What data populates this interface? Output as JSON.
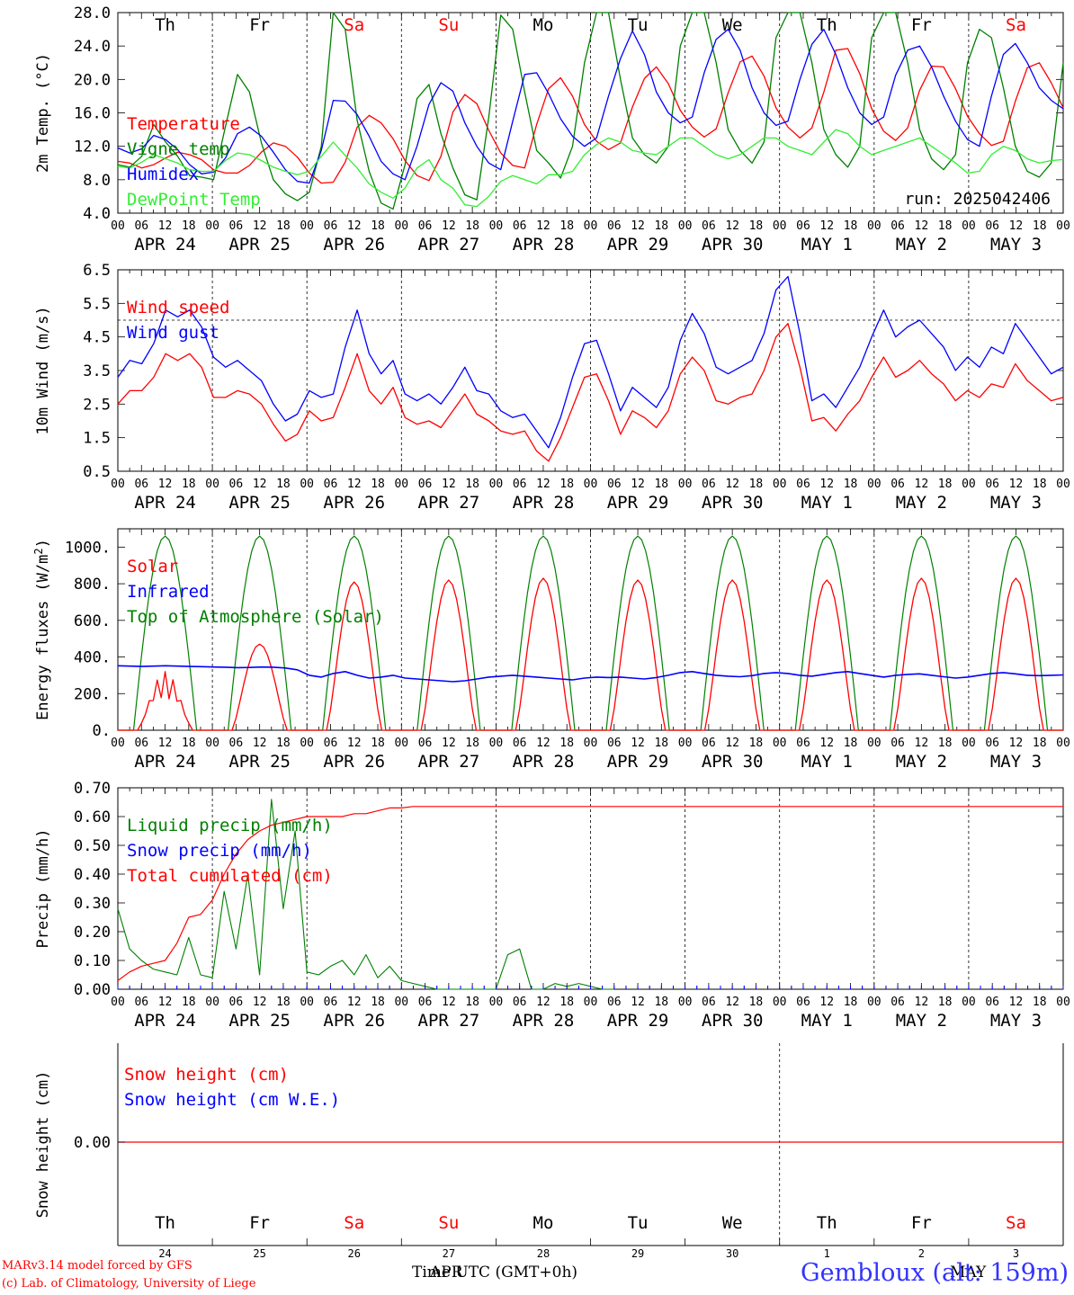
{
  "hour_ticks": [
    "00",
    "06",
    "12",
    "18"
  ],
  "end_tick": "00",
  "day_labels": [
    "APR 24",
    "APR 25",
    "APR 26",
    "APR 27",
    "APR 28",
    "APR 29",
    "APR 30",
    "MAY  1",
    "MAY  2",
    "MAY  3"
  ],
  "weekdays": [
    {
      "label": "Th",
      "color": "#000000"
    },
    {
      "label": "Fr",
      "color": "#000000"
    },
    {
      "label": "Sa",
      "color": "#ff0000"
    },
    {
      "label": "Su",
      "color": "#ff0000"
    },
    {
      "label": "Mo",
      "color": "#000000"
    },
    {
      "label": "Tu",
      "color": "#000000"
    },
    {
      "label": "We",
      "color": "#000000"
    },
    {
      "label": "Th",
      "color": "#000000"
    },
    {
      "label": "Fr",
      "color": "#000000"
    },
    {
      "label": "Sa",
      "color": "#ff0000"
    }
  ],
  "day_numbers": [
    "24",
    "25",
    "26",
    "27",
    "28",
    "29",
    "30",
    "1",
    "2",
    "3"
  ],
  "colors": {
    "red": "#ff0000",
    "blue": "#0000ff",
    "green": "#008000",
    "lightgreen": "#33ee33"
  },
  "footer": {
    "line1": "MARv3.14 model forced by GFS",
    "line2": "(c) Lab. of Climatology, University of Liege",
    "x_title": "Time UTC (GMT+0h)",
    "month_overlay_apr": "APR",
    "month_overlay_may": "MAY",
    "station": "Gembloux (alt: 159m)"
  },
  "chart_data": [
    {
      "type": "line",
      "ylabel": "2m Temp. (°C)",
      "ylim": [
        4,
        28
      ],
      "yticks": [
        "4.0",
        "8.0",
        "12.0",
        "16.0",
        "20.0",
        "24.0",
        "28.0"
      ],
      "annotation": "run: 2025042406",
      "x": "3-hourly steps from APR 24 00 UTC to MAY 4 00 UTC",
      "series": [
        {
          "name": "Temperature",
          "color": "#ff0000",
          "values": [
            10.2,
            10.0,
            9.4,
            9.8,
            10.6,
            11.3,
            11.0,
            10.4,
            9.2,
            8.8,
            8.8,
            9.7,
            11.3,
            12.4,
            12.0,
            10.7,
            8.8,
            7.6,
            7.7,
            10.1,
            14.3,
            15.7,
            14.8,
            12.9,
            10.3,
            8.5,
            7.9,
            10.8,
            16.1,
            18.2,
            17.1,
            13.9,
            11.2,
            9.7,
            9.4,
            14.6,
            18.9,
            20.2,
            18.0,
            14.6,
            12.6,
            11.6,
            12.4,
            16.7,
            20.1,
            21.5,
            19.5,
            16.3,
            14.3,
            13.1,
            14.1,
            18.4,
            22.1,
            22.8,
            20.4,
            16.6,
            14.3,
            13.0,
            14.2,
            18.5,
            23.5,
            23.7,
            20.7,
            16.5,
            13.8,
            12.7,
            14.2,
            18.7,
            21.6,
            21.5,
            18.9,
            15.6,
            13.5,
            12.1,
            12.6,
            17.4,
            21.4,
            22.0,
            19.6,
            16.6
          ]
        },
        {
          "name": "Vigne temp",
          "color": "#008000",
          "values": [
            9.8,
            9.5,
            10.8,
            14.6,
            12.5,
            10.8,
            8.5,
            8.3,
            8.0,
            14.4,
            20.6,
            18.5,
            12.4,
            8.0,
            6.3,
            5.5,
            6.5,
            12.0,
            28.0,
            26.0,
            15.1,
            9.0,
            5.2,
            4.5,
            9.8,
            17.7,
            19.4,
            13.5,
            9.4,
            6.2,
            5.6,
            15.5,
            27.7,
            26.0,
            18.5,
            11.5,
            10.0,
            8.2,
            12.0,
            22.0,
            28.0,
            28.0,
            20.0,
            13.0,
            11.0,
            10.0,
            12.0,
            24.0,
            28.0,
            28.0,
            22.0,
            14.0,
            11.5,
            10.0,
            12.5,
            25.0,
            28.0,
            28.0,
            22.0,
            14.0,
            11.0,
            9.5,
            12.0,
            25.0,
            28.0,
            28.0,
            22.0,
            14.0,
            10.5,
            9.2,
            11.0,
            22.0,
            26.0,
            25.0,
            19.0,
            12.0,
            9.0,
            8.3,
            10.0,
            22.0
          ]
        },
        {
          "name": "Humidex",
          "color": "#0000ff",
          "values": [
            11.8,
            11.2,
            11.7,
            13.3,
            12.8,
            11.6,
            9.8,
            8.7,
            8.9,
            10.6,
            13.5,
            14.3,
            13.2,
            11.3,
            9.2,
            7.8,
            7.6,
            11.5,
            17.5,
            17.4,
            15.8,
            13.2,
            10.2,
            8.7,
            8.0,
            12.0,
            17.0,
            19.6,
            18.6,
            14.8,
            12.0,
            10.0,
            9.2,
            15.0,
            20.6,
            20.8,
            18.3,
            15.3,
            13.2,
            12.0,
            13.0,
            18.0,
            22.5,
            25.8,
            23.0,
            18.5,
            16.0,
            14.8,
            15.5,
            20.8,
            24.8,
            26.0,
            23.5,
            19.0,
            16.0,
            14.5,
            15.0,
            20.0,
            24.2,
            26.0,
            23.0,
            19.0,
            16.0,
            14.6,
            15.5,
            20.5,
            23.5,
            24.0,
            21.5,
            18.0,
            15.0,
            12.8,
            12.0,
            18.0,
            23.0,
            24.3,
            22.0,
            19.0,
            17.5,
            16.5
          ]
        },
        {
          "name": "DewPoint Temp",
          "color": "#33ee33",
          "values": [
            9.6,
            9.4,
            10.1,
            11.0,
            10.5,
            10.0,
            9.2,
            9.0,
            9.0,
            10.3,
            11.2,
            11.0,
            10.3,
            9.5,
            9.0,
            8.6,
            9.0,
            10.8,
            12.5,
            10.9,
            9.4,
            7.5,
            6.5,
            5.8,
            7.0,
            9.4,
            10.4,
            8.0,
            7.0,
            5.0,
            4.8,
            6.0,
            7.8,
            8.5,
            8.0,
            7.5,
            8.6,
            8.6,
            9.0,
            11.0,
            12.2,
            13.0,
            12.5,
            11.5,
            11.2,
            11.0,
            12.0,
            13.0,
            13.0,
            12.0,
            11.0,
            10.5,
            11.0,
            12.0,
            13.0,
            13.0,
            12.0,
            11.5,
            11.0,
            12.5,
            14.0,
            13.5,
            12.0,
            11.0,
            11.5,
            12.0,
            12.5,
            13.0,
            12.0,
            11.0,
            10.0,
            8.8,
            9.0,
            11.0,
            12.0,
            11.5,
            10.5,
            10.0,
            10.3,
            10.4
          ]
        }
      ]
    },
    {
      "type": "line",
      "ylabel": "10m Wind (m/s)",
      "ylim": [
        0.5,
        6.5
      ],
      "yticks": [
        "0.5",
        "1.5",
        "2.5",
        "3.5",
        "4.5",
        "5.5",
        "6.5"
      ],
      "reference_line": 5.0,
      "series": [
        {
          "name": "Wind speed",
          "color": "#ff0000",
          "values": [
            2.5,
            2.9,
            2.9,
            3.3,
            4.0,
            3.8,
            4.0,
            3.6,
            2.7,
            2.7,
            2.9,
            2.8,
            2.5,
            1.9,
            1.4,
            1.6,
            2.3,
            2.0,
            2.1,
            3.0,
            4.0,
            2.9,
            2.5,
            3.0,
            2.1,
            1.9,
            2.0,
            1.8,
            2.3,
            2.8,
            2.2,
            2.0,
            1.7,
            1.6,
            1.7,
            1.1,
            0.8,
            1.5,
            2.4,
            3.3,
            3.4,
            2.6,
            1.6,
            2.3,
            2.1,
            1.8,
            2.3,
            3.4,
            3.9,
            3.5,
            2.6,
            2.5,
            2.7,
            2.8,
            3.5,
            4.5,
            4.9,
            3.6,
            2.0,
            2.1,
            1.7,
            2.2,
            2.6,
            3.3,
            3.9,
            3.3,
            3.5,
            3.8,
            3.4,
            3.1,
            2.6,
            2.9,
            2.7,
            3.1,
            3.0,
            3.7,
            3.2,
            2.9,
            2.6,
            2.7
          ]
        },
        {
          "name": "Wind gust",
          "color": "#0000ff",
          "values": [
            3.3,
            3.8,
            3.7,
            4.3,
            5.3,
            5.1,
            5.3,
            4.8,
            3.9,
            3.6,
            3.8,
            3.5,
            3.2,
            2.5,
            2.0,
            2.2,
            2.9,
            2.7,
            2.8,
            4.2,
            5.3,
            4.0,
            3.4,
            3.8,
            2.8,
            2.6,
            2.8,
            2.5,
            3.0,
            3.6,
            2.9,
            2.8,
            2.3,
            2.1,
            2.2,
            1.7,
            1.2,
            2.1,
            3.3,
            4.3,
            4.4,
            3.4,
            2.3,
            3.0,
            2.7,
            2.4,
            3.0,
            4.4,
            5.2,
            4.6,
            3.6,
            3.4,
            3.6,
            3.8,
            4.6,
            5.9,
            6.3,
            4.6,
            2.6,
            2.8,
            2.4,
            3.0,
            3.6,
            4.5,
            5.3,
            4.5,
            4.8,
            5.0,
            4.6,
            4.2,
            3.5,
            3.9,
            3.6,
            4.2,
            4.0,
            4.9,
            4.4,
            3.9,
            3.4,
            3.6
          ]
        }
      ]
    },
    {
      "type": "line",
      "ylabel": "Energy fluxes (W/m2)",
      "ylim": [
        0,
        1100
      ],
      "yticks": [
        "0.",
        "200.",
        "400.",
        "600.",
        "800.",
        "1000."
      ],
      "series": [
        {
          "name": "Solar",
          "color": "#ff0000",
          "peaks": [
            320,
            470,
            810,
            820,
            830,
            820,
            820,
            820,
            830,
            830
          ]
        },
        {
          "name": "Infrared",
          "color": "#0000ff",
          "values": [
            352,
            350,
            348,
            350,
            352,
            350,
            348,
            347,
            345,
            344,
            342,
            343,
            345,
            344,
            340,
            330,
            300,
            290,
            310,
            320,
            300,
            285,
            290,
            300,
            285,
            280,
            275,
            270,
            265,
            270,
            280,
            290,
            295,
            300,
            295,
            290,
            285,
            280,
            275,
            285,
            290,
            288,
            290,
            285,
            280,
            288,
            300,
            315,
            320,
            310,
            300,
            295,
            292,
            298,
            310,
            315,
            310,
            300,
            295,
            305,
            315,
            320,
            310,
            300,
            290,
            300,
            305,
            308,
            300,
            292,
            285,
            290,
            300,
            310,
            315,
            308,
            300,
            298,
            300,
            302
          ]
        },
        {
          "name": "Top of Atmosphere (Solar)",
          "color": "#008000",
          "peak": 1060
        }
      ]
    },
    {
      "type": "line",
      "ylabel": "Precip (mm/h)",
      "ylim": [
        0,
        0.7
      ],
      "yticks": [
        "0.00",
        "0.10",
        "0.20",
        "0.30",
        "0.40",
        "0.50",
        "0.60",
        "0.70"
      ],
      "series": [
        {
          "name": "Liquid precip (mm/h)",
          "color": "#008000",
          "values": [
            0.28,
            0.14,
            0.1,
            0.07,
            0.06,
            0.05,
            0.18,
            0.05,
            0.04,
            0.34,
            0.14,
            0.4,
            0.05,
            0.66,
            0.28,
            0.55,
            0.06,
            0.05,
            0.08,
            0.1,
            0.05,
            0.12,
            0.04,
            0.08,
            0.03,
            0.02,
            0.01,
            0.0,
            0.0,
            0.0,
            0.0,
            0.0,
            0.0,
            0.12,
            0.14,
            0.0,
            0.0,
            0.02,
            0.01,
            0.02,
            0.01,
            0.0,
            0.0
          ]
        },
        {
          "name": "Snow precip (mm/h)",
          "color": "#0000ff",
          "values": [
            0
          ]
        },
        {
          "name": "Total cumulated (cm)",
          "color": "#ff0000",
          "values": [
            0.03,
            0.06,
            0.08,
            0.09,
            0.1,
            0.16,
            0.25,
            0.26,
            0.31,
            0.4,
            0.47,
            0.52,
            0.55,
            0.57,
            0.58,
            0.59,
            0.6,
            0.6,
            0.6,
            0.6,
            0.61,
            0.61,
            0.62,
            0.63,
            0.63,
            0.635,
            0.635,
            0.635
          ]
        }
      ]
    },
    {
      "type": "line",
      "ylabel": "Snow height (cm)",
      "yticks": [
        "0.00"
      ],
      "series": [
        {
          "name": "Snow height (cm)",
          "color": "#ff0000",
          "values": [
            0
          ]
        },
        {
          "name": "Snow height (cm W.E.)",
          "color": "#0000ff",
          "values": [
            0
          ]
        }
      ]
    }
  ]
}
